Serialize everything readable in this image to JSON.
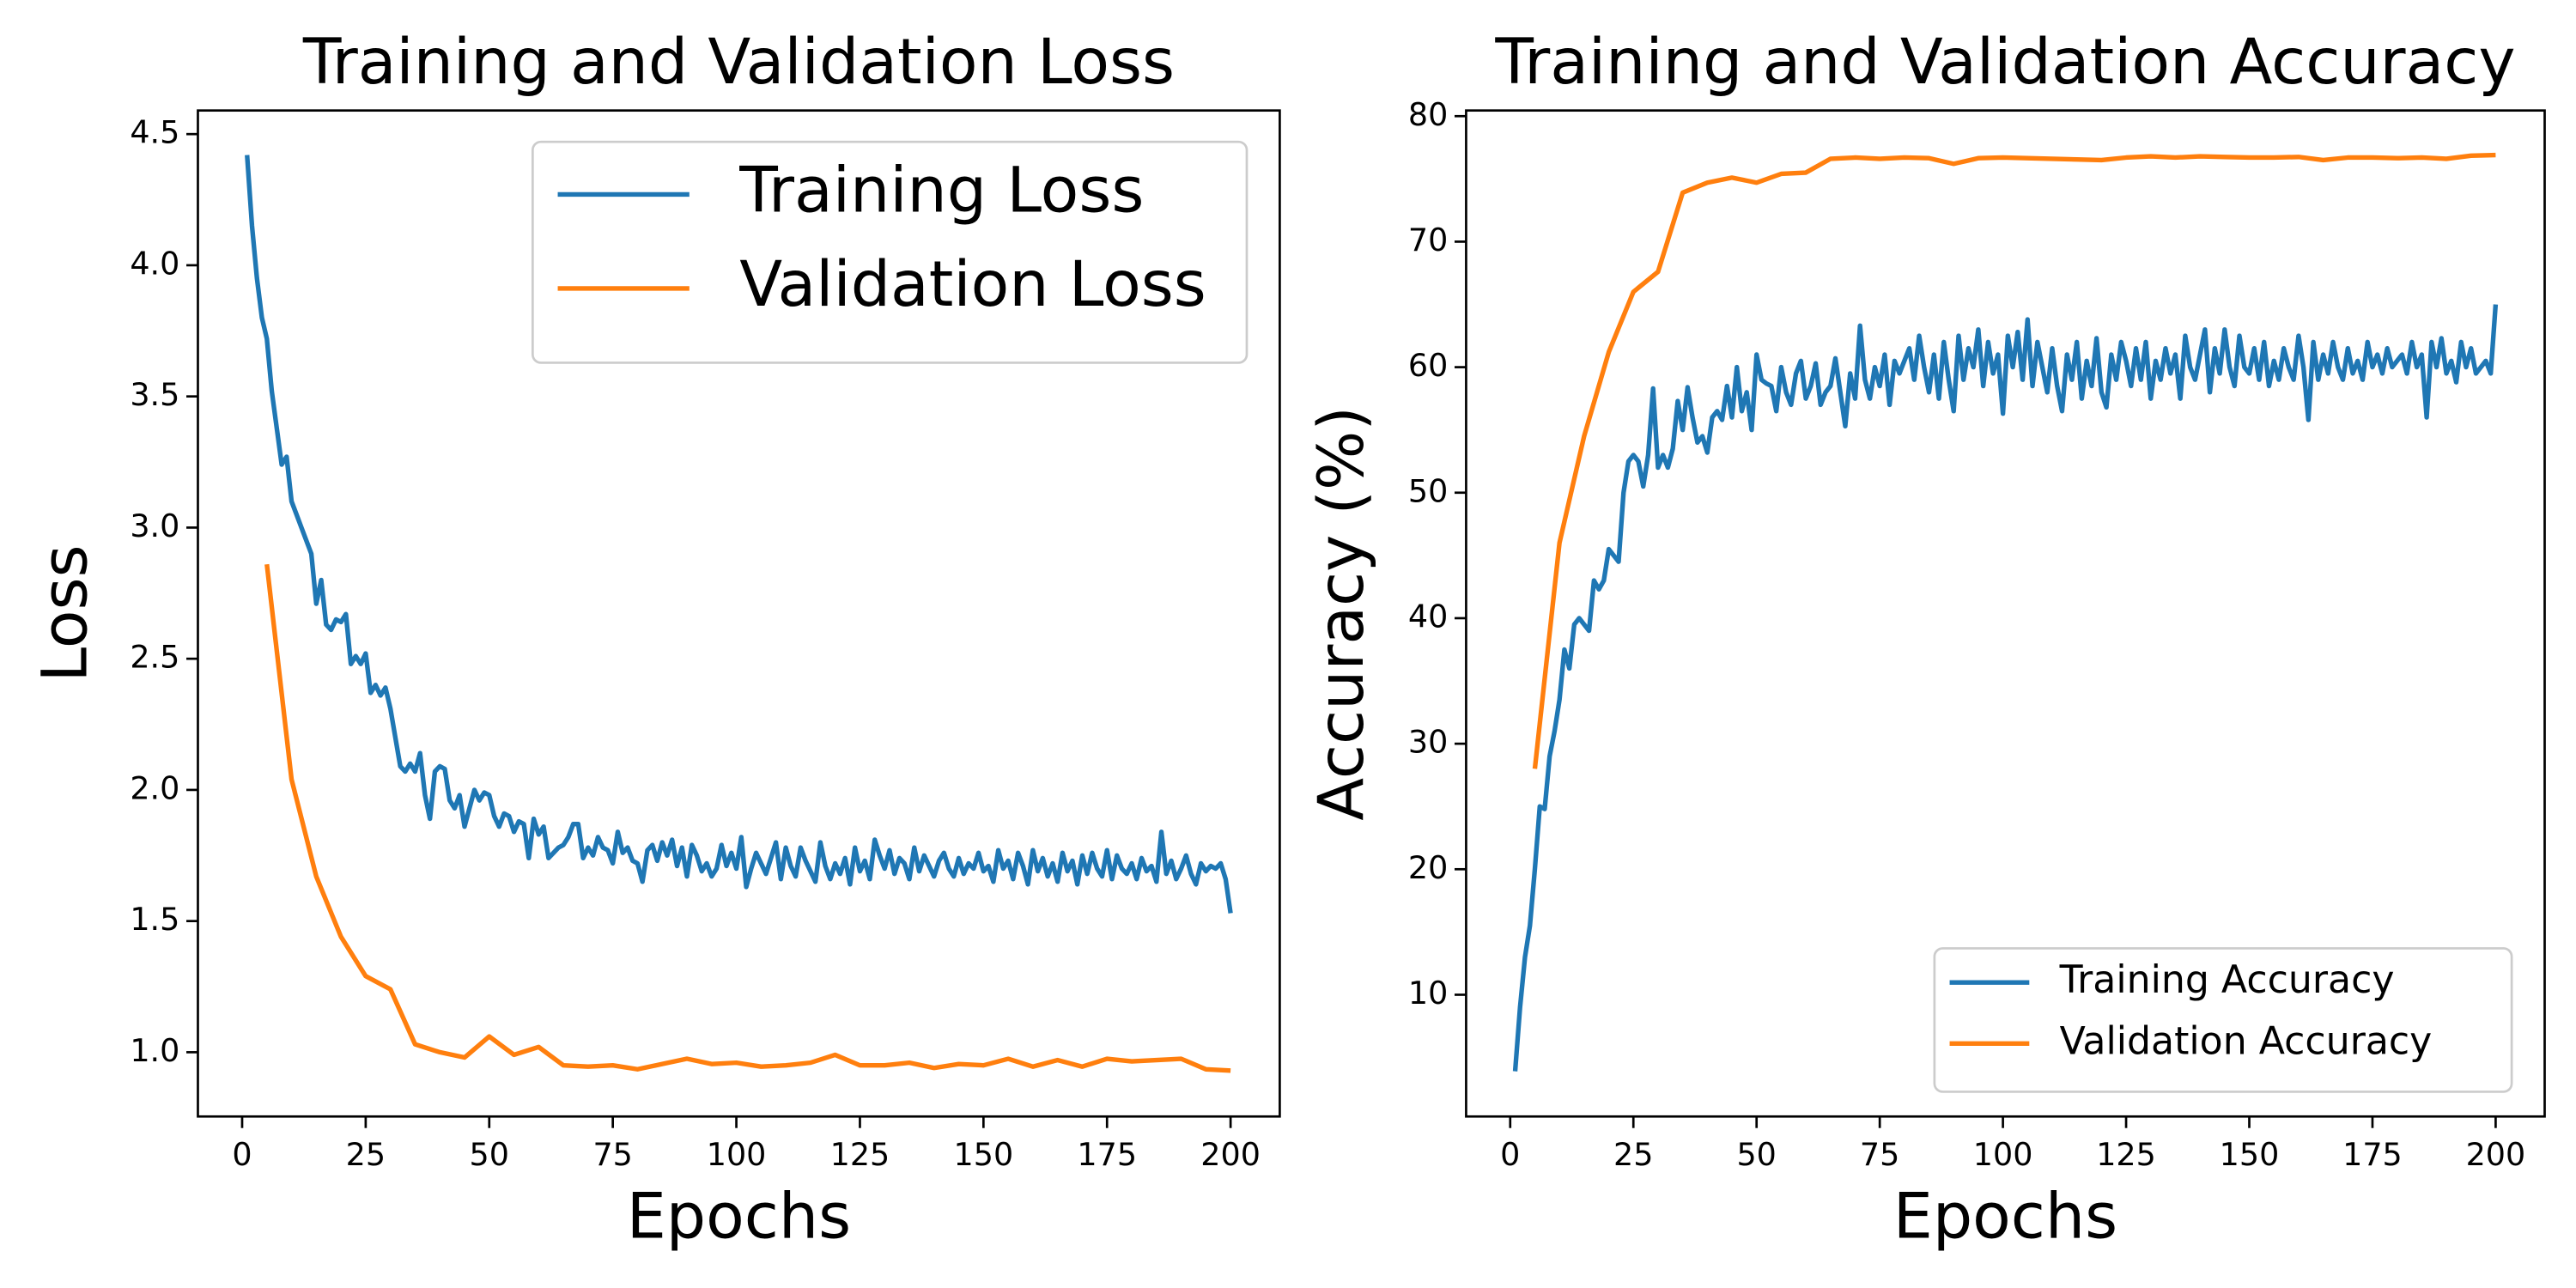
{
  "chart_data": [
    {
      "type": "line",
      "title": "Training and Validation Loss",
      "xlabel": "Epochs",
      "ylabel": "Loss",
      "xlim": [
        -8.95,
        209.95
      ],
      "ylim": [
        0.755,
        4.59
      ],
      "xticks": [
        0,
        25,
        50,
        75,
        100,
        125,
        150,
        175,
        200
      ],
      "yticks": [
        {
          "value": 1,
          "label": "1.0"
        },
        {
          "value": 1.5,
          "label": "1.5"
        },
        {
          "value": 2,
          "label": "2.0"
        },
        {
          "value": 2.5,
          "label": "2.5"
        },
        {
          "value": 3,
          "label": "3.0"
        },
        {
          "value": 3.5,
          "label": "3.5"
        },
        {
          "value": 4,
          "label": "4.0"
        },
        {
          "value": 4.5,
          "label": "4.5"
        }
      ],
      "legend": "upper right",
      "grid": false,
      "series": [
        {
          "name": "Training Loss",
          "color": "#1f77b4",
          "x": [
            1,
            2,
            3,
            4,
            5,
            6,
            7,
            8,
            9,
            10,
            11,
            12,
            13,
            14,
            15,
            16,
            17,
            18,
            19,
            20,
            21,
            22,
            23,
            24,
            25,
            26,
            27,
            28,
            29,
            30,
            31,
            32,
            33,
            34,
            35,
            36,
            37,
            38,
            39,
            40,
            41,
            42,
            43,
            44,
            45,
            46,
            47,
            48,
            49,
            50,
            51,
            52,
            53,
            54,
            55,
            56,
            57,
            58,
            59,
            60,
            61,
            62,
            63,
            64,
            65,
            66,
            67,
            68,
            69,
            70,
            71,
            72,
            73,
            74,
            75,
            76,
            77,
            78,
            79,
            80,
            81,
            82,
            83,
            84,
            85,
            86,
            87,
            88,
            89,
            90,
            91,
            92,
            93,
            94,
            95,
            96,
            97,
            98,
            99,
            100,
            101,
            102,
            103,
            104,
            105,
            106,
            107,
            108,
            109,
            110,
            111,
            112,
            113,
            114,
            115,
            116,
            117,
            118,
            119,
            120,
            121,
            122,
            123,
            124,
            125,
            126,
            127,
            128,
            129,
            130,
            131,
            132,
            133,
            134,
            135,
            136,
            137,
            138,
            139,
            140,
            141,
            142,
            143,
            144,
            145,
            146,
            147,
            148,
            149,
            150,
            151,
            152,
            153,
            154,
            155,
            156,
            157,
            158,
            159,
            160,
            161,
            162,
            163,
            164,
            165,
            166,
            167,
            168,
            169,
            170,
            171,
            172,
            173,
            174,
            175,
            176,
            177,
            178,
            179,
            180,
            181,
            182,
            183,
            184,
            185,
            186,
            187,
            188,
            189,
            190,
            191,
            192,
            193,
            194,
            195,
            196,
            197,
            198,
            199,
            200
          ],
          "values": [
            4.42,
            4.15,
            3.95,
            3.8,
            3.72,
            3.52,
            3.38,
            3.24,
            3.27,
            3.1,
            3.05,
            3.0,
            2.95,
            2.9,
            2.71,
            2.8,
            2.63,
            2.61,
            2.65,
            2.64,
            2.67,
            2.48,
            2.51,
            2.48,
            2.52,
            2.37,
            2.4,
            2.36,
            2.39,
            2.31,
            2.2,
            2.09,
            2.07,
            2.1,
            2.07,
            2.14,
            1.98,
            1.89,
            2.07,
            2.09,
            2.08,
            1.96,
            1.93,
            1.98,
            1.86,
            1.93,
            2.0,
            1.96,
            1.99,
            1.98,
            1.9,
            1.86,
            1.91,
            1.9,
            1.84,
            1.88,
            1.87,
            1.74,
            1.89,
            1.83,
            1.86,
            1.74,
            1.76,
            1.78,
            1.79,
            1.82,
            1.87,
            1.87,
            1.74,
            1.78,
            1.75,
            1.82,
            1.78,
            1.77,
            1.72,
            1.84,
            1.76,
            1.78,
            1.73,
            1.72,
            1.65,
            1.77,
            1.79,
            1.73,
            1.8,
            1.75,
            1.81,
            1.71,
            1.78,
            1.67,
            1.79,
            1.75,
            1.69,
            1.72,
            1.67,
            1.7,
            1.79,
            1.71,
            1.76,
            1.7,
            1.82,
            1.63,
            1.7,
            1.76,
            1.72,
            1.68,
            1.74,
            1.8,
            1.66,
            1.78,
            1.71,
            1.67,
            1.78,
            1.73,
            1.69,
            1.65,
            1.8,
            1.71,
            1.66,
            1.72,
            1.68,
            1.74,
            1.64,
            1.78,
            1.69,
            1.73,
            1.66,
            1.81,
            1.75,
            1.7,
            1.77,
            1.68,
            1.74,
            1.72,
            1.66,
            1.78,
            1.69,
            1.75,
            1.71,
            1.67,
            1.73,
            1.76,
            1.7,
            1.67,
            1.74,
            1.68,
            1.72,
            1.7,
            1.76,
            1.69,
            1.71,
            1.65,
            1.77,
            1.7,
            1.73,
            1.66,
            1.76,
            1.71,
            1.64,
            1.77,
            1.69,
            1.74,
            1.67,
            1.72,
            1.65,
            1.76,
            1.69,
            1.73,
            1.64,
            1.75,
            1.68,
            1.76,
            1.7,
            1.67,
            1.77,
            1.66,
            1.75,
            1.7,
            1.68,
            1.72,
            1.66,
            1.74,
            1.69,
            1.71,
            1.65,
            1.84,
            1.68,
            1.73,
            1.66,
            1.7,
            1.75,
            1.68,
            1.64,
            1.72,
            1.69,
            1.71,
            1.7,
            1.72,
            1.66,
            1.53
          ]
        },
        {
          "name": "Validation Loss",
          "color": "#ff7f0e",
          "x": [
            5,
            10,
            15,
            20,
            25,
            30,
            35,
            40,
            45,
            50,
            55,
            60,
            65,
            70,
            75,
            80,
            85,
            90,
            95,
            100,
            105,
            110,
            115,
            120,
            125,
            130,
            135,
            140,
            145,
            150,
            155,
            160,
            165,
            170,
            175,
            180,
            185,
            190,
            195,
            200
          ],
          "values": [
            2.86,
            2.04,
            1.67,
            1.44,
            1.29,
            1.24,
            1.03,
            1.0,
            0.98,
            1.06,
            0.99,
            1.02,
            0.95,
            0.945,
            0.95,
            0.935,
            0.955,
            0.975,
            0.955,
            0.96,
            0.945,
            0.95,
            0.96,
            0.99,
            0.95,
            0.95,
            0.96,
            0.94,
            0.955,
            0.95,
            0.975,
            0.945,
            0.97,
            0.945,
            0.975,
            0.965,
            0.97,
            0.975,
            0.935,
            0.93
          ]
        }
      ]
    },
    {
      "type": "line",
      "title": "Training and Validation Accuracy",
      "xlabel": "Epochs",
      "ylabel": "Accuracy (%)",
      "xlim": [
        -8.95,
        209.95
      ],
      "ylim": [
        0.3,
        80.45
      ],
      "xticks": [
        0,
        25,
        50,
        75,
        100,
        125,
        150,
        175,
        200
      ],
      "yticks": [
        10,
        20,
        30,
        40,
        50,
        60,
        70,
        80
      ],
      "legend": "lower right",
      "grid": false,
      "series": [
        {
          "name": "Training Accuracy",
          "color": "#1f77b4",
          "x": [
            1,
            2,
            3,
            4,
            5,
            6,
            7,
            8,
            9,
            10,
            11,
            12,
            13,
            14,
            15,
            16,
            17,
            18,
            19,
            20,
            21,
            22,
            23,
            24,
            25,
            26,
            27,
            28,
            29,
            30,
            31,
            32,
            33,
            34,
            35,
            36,
            37,
            38,
            39,
            40,
            41,
            42,
            43,
            44,
            45,
            46,
            47,
            48,
            49,
            50,
            51,
            52,
            53,
            54,
            55,
            56,
            57,
            58,
            59,
            60,
            61,
            62,
            63,
            64,
            65,
            66,
            67,
            68,
            69,
            70,
            71,
            72,
            73,
            74,
            75,
            76,
            77,
            78,
            79,
            80,
            81,
            82,
            83,
            84,
            85,
            86,
            87,
            88,
            89,
            90,
            91,
            92,
            93,
            94,
            95,
            96,
            97,
            98,
            99,
            100,
            101,
            102,
            103,
            104,
            105,
            106,
            107,
            108,
            109,
            110,
            111,
            112,
            113,
            114,
            115,
            116,
            117,
            118,
            119,
            120,
            121,
            122,
            123,
            124,
            125,
            126,
            127,
            128,
            129,
            130,
            131,
            132,
            133,
            134,
            135,
            136,
            137,
            138,
            139,
            140,
            141,
            142,
            143,
            144,
            145,
            146,
            147,
            148,
            149,
            150,
            151,
            152,
            153,
            154,
            155,
            156,
            157,
            158,
            159,
            160,
            161,
            162,
            163,
            164,
            165,
            166,
            167,
            168,
            169,
            170,
            171,
            172,
            173,
            174,
            175,
            176,
            177,
            178,
            179,
            180,
            181,
            182,
            183,
            184,
            185,
            186,
            187,
            188,
            189,
            190,
            191,
            192,
            193,
            194,
            195,
            196,
            197,
            198,
            199,
            200
          ],
          "values": [
            3.9,
            9,
            13,
            15.5,
            20,
            25,
            24.8,
            29,
            31,
            33.5,
            37.5,
            36,
            39.5,
            40,
            39.5,
            39,
            43,
            42.3,
            43,
            45.5,
            45,
            44.5,
            50,
            52.5,
            53,
            52.5,
            50.5,
            53,
            58.3,
            52,
            53,
            52,
            53.5,
            57.3,
            55,
            58.4,
            56,
            54,
            54.5,
            53.2,
            56,
            56.5,
            55.8,
            58.5,
            56,
            60,
            56.5,
            58,
            55,
            61,
            59,
            58.7,
            58.5,
            56.5,
            60,
            58,
            57,
            59.5,
            60.5,
            57.5,
            58.5,
            60.3,
            57,
            58,
            58.5,
            60.7,
            58,
            55.3,
            59.5,
            57.5,
            63.3,
            59,
            57.5,
            60,
            58.5,
            61,
            57,
            60.5,
            59.5,
            60.5,
            61.5,
            59,
            62.5,
            60,
            58,
            61,
            57.5,
            62,
            59,
            56.5,
            62.5,
            59,
            61.5,
            60,
            63,
            58.5,
            62,
            59.5,
            61,
            56.3,
            62.5,
            60,
            62.8,
            59,
            63.8,
            58.5,
            62,
            60,
            58,
            61.5,
            58.5,
            56.5,
            61,
            59,
            62,
            57.5,
            60.5,
            58.5,
            62.3,
            58,
            56.8,
            61,
            59,
            62,
            60.5,
            58.5,
            61.5,
            59,
            62,
            57.5,
            60.5,
            59,
            61.5,
            59.5,
            61,
            57.5,
            62.5,
            60,
            59,
            61,
            63,
            58,
            61.5,
            59.5,
            63,
            60,
            58.5,
            62.5,
            60,
            59.5,
            61.5,
            59,
            62,
            58.5,
            60.5,
            59,
            61.5,
            60,
            59,
            62.5,
            60,
            55.8,
            62,
            59,
            61,
            59.5,
            62,
            60,
            59,
            61.5,
            59.5,
            60.5,
            59,
            62,
            60,
            61,
            59.5,
            61.5,
            60,
            60.5,
            61,
            59.5,
            62,
            60,
            61,
            56,
            62,
            60,
            62.3,
            59.5,
            60.5,
            58.8,
            62,
            60,
            61.5,
            59.5,
            60,
            60.5,
            59.5,
            65
          ]
        },
        {
          "name": "Validation Accuracy",
          "color": "#ff7f0e",
          "x": [
            5,
            10,
            15,
            20,
            25,
            30,
            35,
            40,
            45,
            50,
            55,
            60,
            65,
            70,
            75,
            80,
            85,
            90,
            95,
            100,
            105,
            110,
            115,
            120,
            125,
            130,
            135,
            140,
            145,
            150,
            155,
            160,
            165,
            170,
            175,
            180,
            185,
            190,
            195,
            200
          ],
          "values": [
            28,
            46,
            54.5,
            61.2,
            66,
            67.6,
            73.9,
            74.7,
            75.1,
            74.7,
            75.4,
            75.5,
            76.6,
            76.7,
            76.6,
            76.7,
            76.65,
            76.2,
            76.65,
            76.7,
            76.65,
            76.6,
            76.55,
            76.5,
            76.7,
            76.8,
            76.7,
            76.8,
            76.75,
            76.7,
            76.7,
            76.75,
            76.5,
            76.7,
            76.7,
            76.65,
            76.7,
            76.6,
            76.85,
            76.9
          ]
        }
      ]
    }
  ]
}
